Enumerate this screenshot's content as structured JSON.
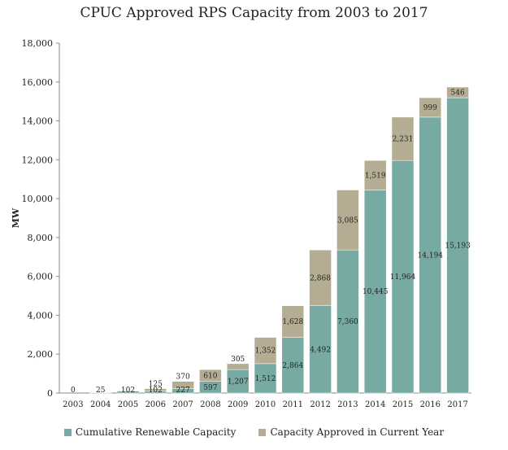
{
  "chart_data": {
    "type": "bar",
    "stacked": true,
    "title": "CPUC Approved RPS Capacity from 2003 to 2017",
    "xlabel": "",
    "ylabel": "MW",
    "ylim": [
      0,
      18000
    ],
    "yticks": [
      0,
      2000,
      4000,
      6000,
      8000,
      10000,
      12000,
      14000,
      16000,
      18000
    ],
    "ytick_labels": [
      "0",
      "2,000",
      "4,000",
      "6,000",
      "8,000",
      "10,000",
      "12,000",
      "14,000",
      "16,000",
      "18,000"
    ],
    "grid": false,
    "legend_position": "bottom",
    "categories": [
      "2003",
      "2004",
      "2005",
      "2006",
      "2007",
      "2008",
      "2009",
      "2010",
      "2011",
      "2012",
      "2013",
      "2014",
      "2015",
      "2016",
      "2017"
    ],
    "series": [
      {
        "name": "Cumulative Renewable Capacity",
        "color": "#77aaa3",
        "values": [
          0,
          25,
          102,
          102,
          227,
          597,
          1207,
          1512,
          2864,
          4492,
          7360,
          10445,
          11964,
          14194,
          15193
        ],
        "labels": [
          "0",
          "25",
          "102",
          "102",
          "227",
          "597",
          "1,207",
          "1,512",
          "2,864",
          "4,492",
          "7,360",
          "10,445",
          "11,964",
          "14,194",
          "15,193"
        ]
      },
      {
        "name": "Capacity Approved in Current Year",
        "color": "#b5ad93",
        "values": [
          0,
          0,
          0,
          125,
          370,
          610,
          305,
          1352,
          1628,
          2868,
          3085,
          1519,
          2231,
          999,
          546
        ],
        "labels": [
          "",
          "",
          "",
          "125",
          "370",
          "610",
          "305",
          "1,352",
          "1,628",
          "2,868",
          "3,085",
          "1,519",
          "2,231",
          "999",
          "546"
        ]
      }
    ]
  }
}
